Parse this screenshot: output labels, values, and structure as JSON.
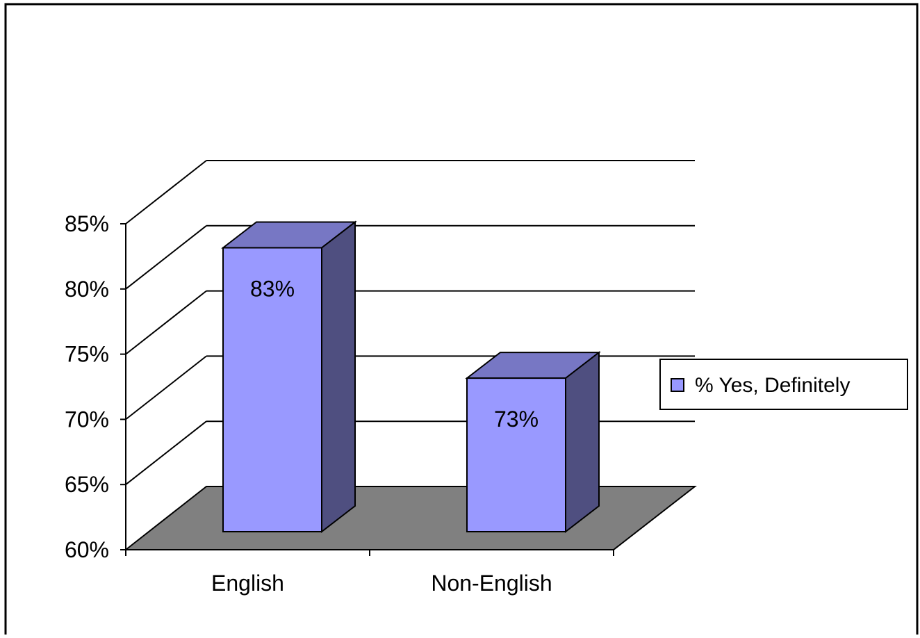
{
  "chart_data": {
    "type": "bar",
    "categories": [
      "English",
      "Non-English"
    ],
    "series": [
      {
        "name": "% Yes, Definitely",
        "values": [
          83,
          73
        ]
      }
    ],
    "data_labels": [
      "83%",
      "73%"
    ],
    "y_ticks": [
      "60%",
      "65%",
      "70%",
      "75%",
      "80%",
      "85%"
    ],
    "ylim": [
      60,
      85
    ],
    "title": "",
    "xlabel": "",
    "ylabel": "",
    "grid": true,
    "legend_position": "right",
    "three_d": true,
    "colors": {
      "bar_front": "#9999ff",
      "bar_top": "#7777c4",
      "bar_side": "#4f4f80",
      "floor": "#808080",
      "gridline": "#000000"
    }
  }
}
